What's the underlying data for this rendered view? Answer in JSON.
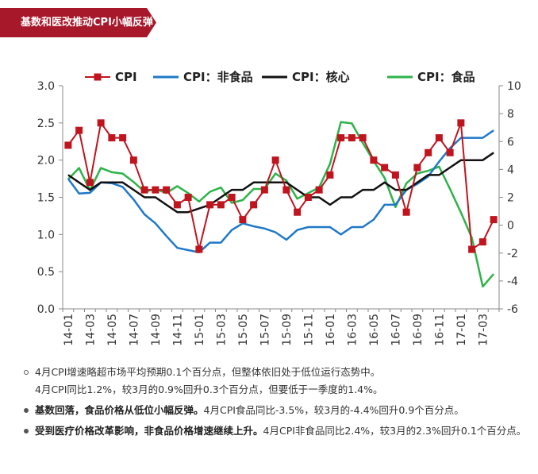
{
  "banner": {
    "title": "基数和医改推动CPI小幅反弹",
    "color": "#a8182b"
  },
  "chart_data": {
    "type": "line",
    "title": "",
    "categories": [
      "14-01",
      "14-02",
      "14-03",
      "14-04",
      "14-05",
      "14-06",
      "14-07",
      "14-08",
      "14-09",
      "14-10",
      "14-11",
      "14-12",
      "15-01",
      "15-02",
      "15-03",
      "15-04",
      "15-05",
      "15-06",
      "15-07",
      "15-08",
      "15-09",
      "15-10",
      "15-11",
      "15-12",
      "16-01",
      "16-02",
      "16-03",
      "16-04",
      "16-05",
      "16-06",
      "16-07",
      "16-08",
      "16-09",
      "16-10",
      "16-11",
      "16-12",
      "17-01",
      "17-02",
      "17-03",
      "17-04"
    ],
    "x_tick_labels": [
      "14-01",
      "14-03",
      "14-05",
      "14-07",
      "14-09",
      "14-11",
      "15-01",
      "15-03",
      "15-05",
      "15-07",
      "15-09",
      "15-11",
      "16-01",
      "16-03",
      "16-05",
      "16-07",
      "16-09",
      "16-11",
      "17-01",
      "17-03"
    ],
    "y_left": {
      "min": 0.0,
      "max": 3.0,
      "ticks": [
        "0.0",
        "0.5",
        "1.0",
        "1.5",
        "2.0",
        "2.5",
        "3.0"
      ]
    },
    "y_right": {
      "min": -6,
      "max": 10,
      "ticks": [
        "-6",
        "-4",
        "-2",
        "0",
        "2",
        "4",
        "6",
        "8",
        "10"
      ]
    },
    "grid": false,
    "legend_position": "top",
    "series": [
      {
        "name": "CPI",
        "axis": "left",
        "color": "#c0141e",
        "marker": "square",
        "values": [
          2.2,
          2.4,
          1.7,
          2.5,
          2.3,
          2.3,
          2.0,
          1.6,
          1.6,
          1.6,
          1.4,
          1.5,
          0.8,
          1.4,
          1.4,
          1.5,
          1.2,
          1.4,
          1.6,
          2.0,
          1.6,
          1.3,
          1.5,
          1.6,
          1.8,
          2.3,
          2.3,
          2.3,
          2.0,
          1.9,
          1.8,
          1.3,
          1.9,
          2.1,
          2.3,
          2.1,
          2.5,
          0.8,
          0.9,
          1.2
        ]
      },
      {
        "name": "CPI：非食品",
        "axis": "left",
        "color": "#1f78c8",
        "marker": "none",
        "values": [
          1.75,
          1.55,
          1.56,
          1.7,
          1.69,
          1.64,
          1.47,
          1.27,
          1.15,
          0.98,
          0.82,
          0.79,
          0.76,
          0.89,
          0.89,
          1.06,
          1.15,
          1.11,
          1.08,
          1.03,
          0.93,
          1.06,
          1.1,
          1.1,
          1.1,
          1.0,
          1.1,
          1.1,
          1.2,
          1.4,
          1.4,
          1.6,
          1.68,
          1.78,
          1.98,
          2.16,
          2.3,
          2.3,
          2.3,
          2.4
        ]
      },
      {
        "name": "CPI：核心",
        "axis": "left",
        "color": "#111111",
        "marker": "none",
        "values": [
          1.8,
          1.7,
          1.6,
          1.7,
          1.7,
          1.7,
          1.6,
          1.5,
          1.5,
          1.4,
          1.3,
          1.3,
          1.35,
          1.4,
          1.5,
          1.6,
          1.6,
          1.7,
          1.7,
          1.7,
          1.7,
          1.6,
          1.5,
          1.5,
          1.4,
          1.5,
          1.5,
          1.6,
          1.6,
          1.7,
          1.6,
          1.6,
          1.7,
          1.8,
          1.8,
          1.9,
          2.0,
          2.0,
          2.0,
          2.1
        ]
      },
      {
        "name": "CPI：食品",
        "axis": "right",
        "color": "#2db34a",
        "marker": "none",
        "values": [
          3.3,
          4.1,
          2.5,
          4.1,
          3.8,
          3.7,
          3.1,
          2.4,
          2.6,
          2.3,
          2.8,
          2.3,
          1.7,
          2.4,
          2.7,
          1.6,
          1.8,
          2.6,
          2.6,
          3.7,
          3.2,
          1.9,
          2.3,
          2.7,
          4.4,
          7.4,
          7.3,
          5.9,
          4.6,
          3.4,
          1.3,
          3.0,
          3.7,
          3.9,
          4.2,
          2.6,
          0.9,
          -0.9,
          -4.4,
          -3.5
        ]
      }
    ]
  },
  "bullets": [
    {
      "lines": [
        "4月CPI增速略超市场平均预期0.1个百分点，但整体依旧处于低位运行态势中。",
        "4月CPI同比1.2%，较3月的0.9%回升0.3个百分点，但要低于一季度的1.4%。"
      ]
    },
    {
      "bold": "基数回落，食品价格从低位小幅反弹。",
      "text": "4月CPI食品同比-3.5%，较3月的-4.4%回升0.9个百分点。"
    },
    {
      "bold": "受到医疗价格改革影响，非食品价格增速继续上升。",
      "text": "4月CPI非食品同比2.4%，较3月的2.3%回升0.1个百分点。"
    }
  ]
}
